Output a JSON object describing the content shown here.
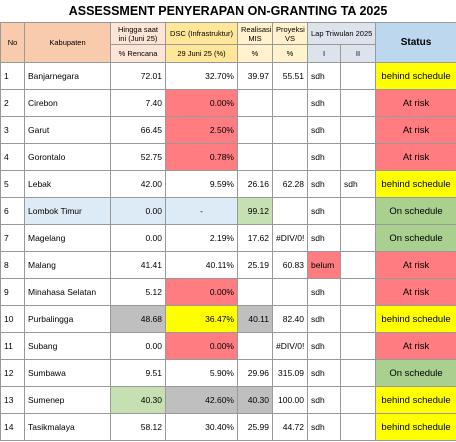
{
  "header": {
    "title": "ASSESSMENT PENYERAPAN ON-GRANTING TA 2025"
  },
  "table": {
    "columns": [
      "No",
      "Kabupaten",
      "Hingga saat ini (Juni 25)",
      "DSC (Infrastruktur)",
      "Realisasi MIS",
      "Proyeksi VS",
      "Lap Triwulan  2025",
      "Status"
    ],
    "subcolumns": [
      "% Rencana",
      "29 Juni 25 (%)",
      "%",
      "%",
      "I",
      "II"
    ],
    "rows": [
      [
        "1",
        "Banjarnegara",
        "72.01",
        "32.70%",
        "39.97",
        "55.51",
        "sdh",
        null,
        "behind schedule"
      ],
      [
        "2",
        "Cirebon",
        "7.40",
        "0.00%",
        null,
        null,
        "sdh",
        null,
        "At risk"
      ],
      [
        "3",
        "Garut",
        "66.45",
        "2.50%",
        null,
        null,
        "sdh",
        null,
        "At risk"
      ],
      [
        "4",
        "Gorontalo",
        "52.75",
        "0.78%",
        null,
        null,
        "sdh",
        null,
        "At risk"
      ],
      [
        "5",
        "Lebak",
        "42.00",
        "9.59%",
        "26.16",
        "62.28",
        "sdh",
        "sdh",
        "behind schedule"
      ],
      [
        "6",
        "Lombok Timur",
        "0.00",
        "-",
        "99.12",
        null,
        "sdh",
        null,
        "On schedule"
      ],
      [
        "7",
        "Magelang",
        "0.00",
        "2.19%",
        "17.62",
        "#DIV/0!",
        "sdh",
        null,
        "On schedule"
      ],
      [
        "8",
        "Malang",
        "41.41",
        "40.11%",
        "25.19",
        "60.83",
        "belum",
        null,
        "At risk"
      ],
      [
        "9",
        "Minahasa Selatan",
        "5.12",
        "0.00%",
        null,
        null,
        "sdh",
        null,
        "At risk"
      ],
      [
        "10",
        "Purbalingga",
        "48.68",
        "36.47%",
        "40.11",
        "82.40",
        "sdh",
        null,
        "behind schedule"
      ],
      [
        "11",
        "Subang",
        "0.00",
        "0.00%",
        null,
        "#DIV/0!",
        "sdh",
        null,
        "At risk"
      ],
      [
        "12",
        "Sumbawa",
        "9.51",
        "5.90%",
        "29.96",
        "315.09",
        "sdh",
        null,
        "On schedule"
      ],
      [
        "13",
        "Sumenep",
        "40.30",
        "42.60%",
        "40.30",
        "100.00",
        "sdh",
        null,
        "behind schedule"
      ],
      [
        "14",
        "Tasikmalaya",
        "58.12",
        "30.40%",
        "25.99",
        "44.72",
        "sdh",
        null,
        "behind schedule"
      ]
    ]
  }
}
